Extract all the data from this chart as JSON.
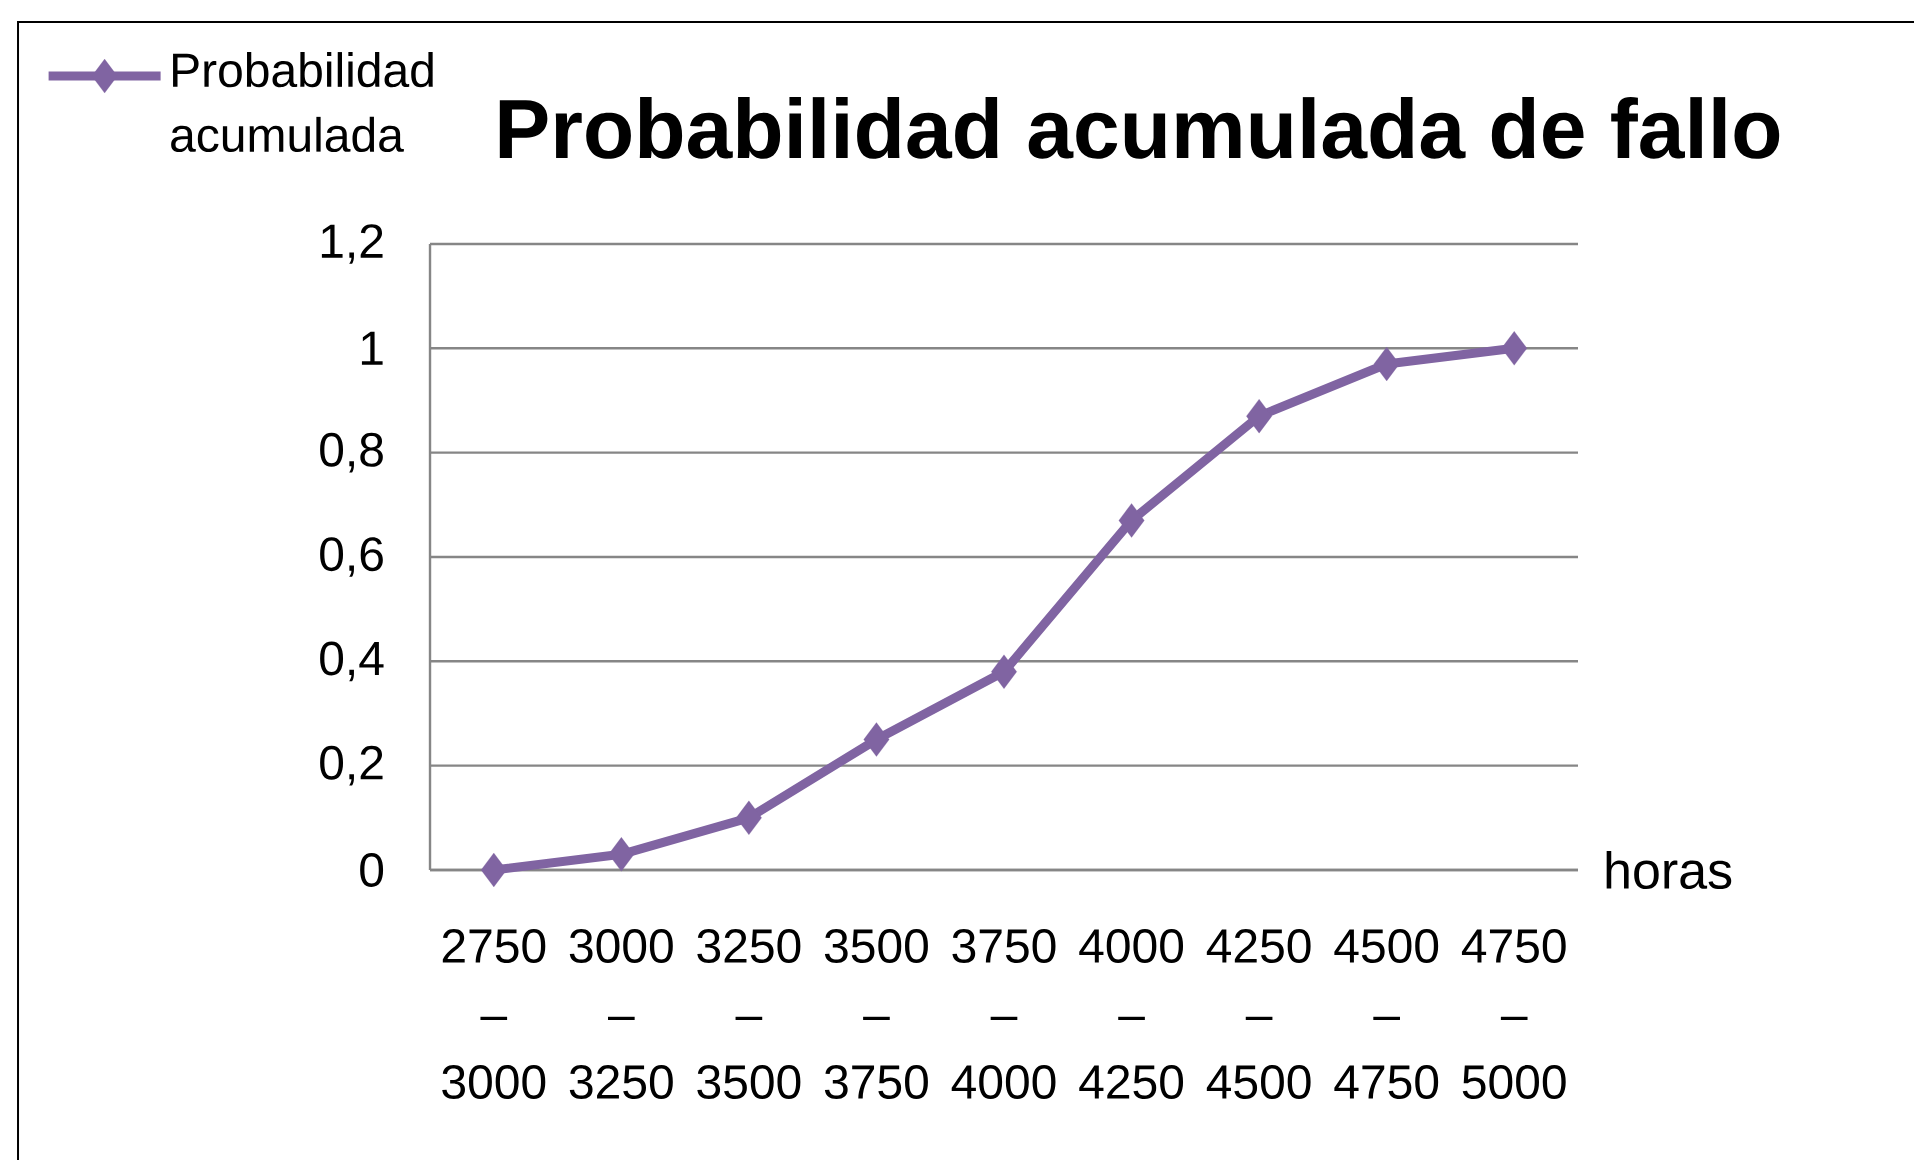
{
  "chart_data": {
    "type": "line",
    "title": "Probabilidad acumulada de fallo",
    "xlabel": "horas",
    "categories": [
      "2750 – 3000",
      "3000 – 3250",
      "3250 – 3500",
      "3500 – 3750",
      "3750 – 4000",
      "4000 – 4250",
      "4250 – 4500",
      "4500 – 4750",
      "4750 – 5000"
    ],
    "series": [
      {
        "name": "Probabilidad acumulada",
        "color": "#8064a2",
        "values": [
          0,
          0.03,
          0.1,
          0.25,
          0.38,
          0.67,
          0.87,
          0.97,
          1
        ]
      }
    ],
    "ylim": [
      0,
      1.2
    ],
    "yticks": [
      0,
      {
        "value": 0.2,
        "label": "0,2"
      },
      {
        "value": 0.4,
        "label": "0,4"
      },
      {
        "value": 0.6,
        "label": "0,6"
      },
      {
        "value": 0.8,
        "label": "0,8"
      },
      1,
      {
        "value": 1.2,
        "label": "1,2"
      }
    ],
    "grid": "y",
    "legend": "top left",
    "marker": "diamond",
    "line_style": "solid"
  }
}
